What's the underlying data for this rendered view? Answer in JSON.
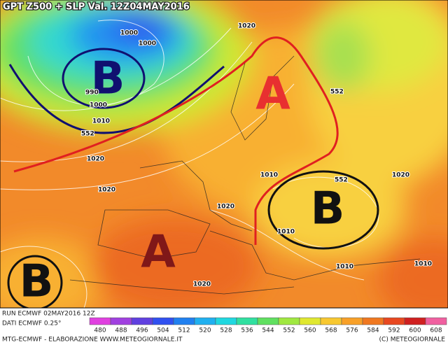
{
  "header": {
    "title": "GPT Z500 + SLP Val. 12Z04MAY2016"
  },
  "isobar_labels": [
    "1000",
    "1000",
    "990",
    "1000",
    "1010",
    "552",
    "1020",
    "1020",
    "1020",
    "1020",
    "1010",
    "1020",
    "1010",
    "552",
    "552",
    "1010",
    "1010",
    "1020"
  ],
  "centers": [
    "B",
    "A",
    "B",
    "A",
    "B"
  ],
  "footer": {
    "run": "RUN ECMWF 02MAY2016 12Z",
    "data": "DATI ECMWF 0.25°",
    "credits": "MTG-ECMWF - ELABORAZIONE WWW.METEOGIORNALE.IT",
    "copyright": "(C) METEOGIORNALE"
  },
  "colorbar": {
    "ticks": [
      480,
      488,
      496,
      504,
      512,
      520,
      528,
      536,
      544,
      552,
      560,
      568,
      576,
      584,
      592,
      600,
      608
    ],
    "colors": [
      "#e040e0",
      "#a040e0",
      "#6040e0",
      "#3050f0",
      "#2080f0",
      "#20b0f0",
      "#20d8e0",
      "#30e0a0",
      "#60e060",
      "#a0e840",
      "#e0e830",
      "#f8c830",
      "#f8a028",
      "#f07820",
      "#e84820",
      "#d02020",
      "#f060a0"
    ]
  }
}
